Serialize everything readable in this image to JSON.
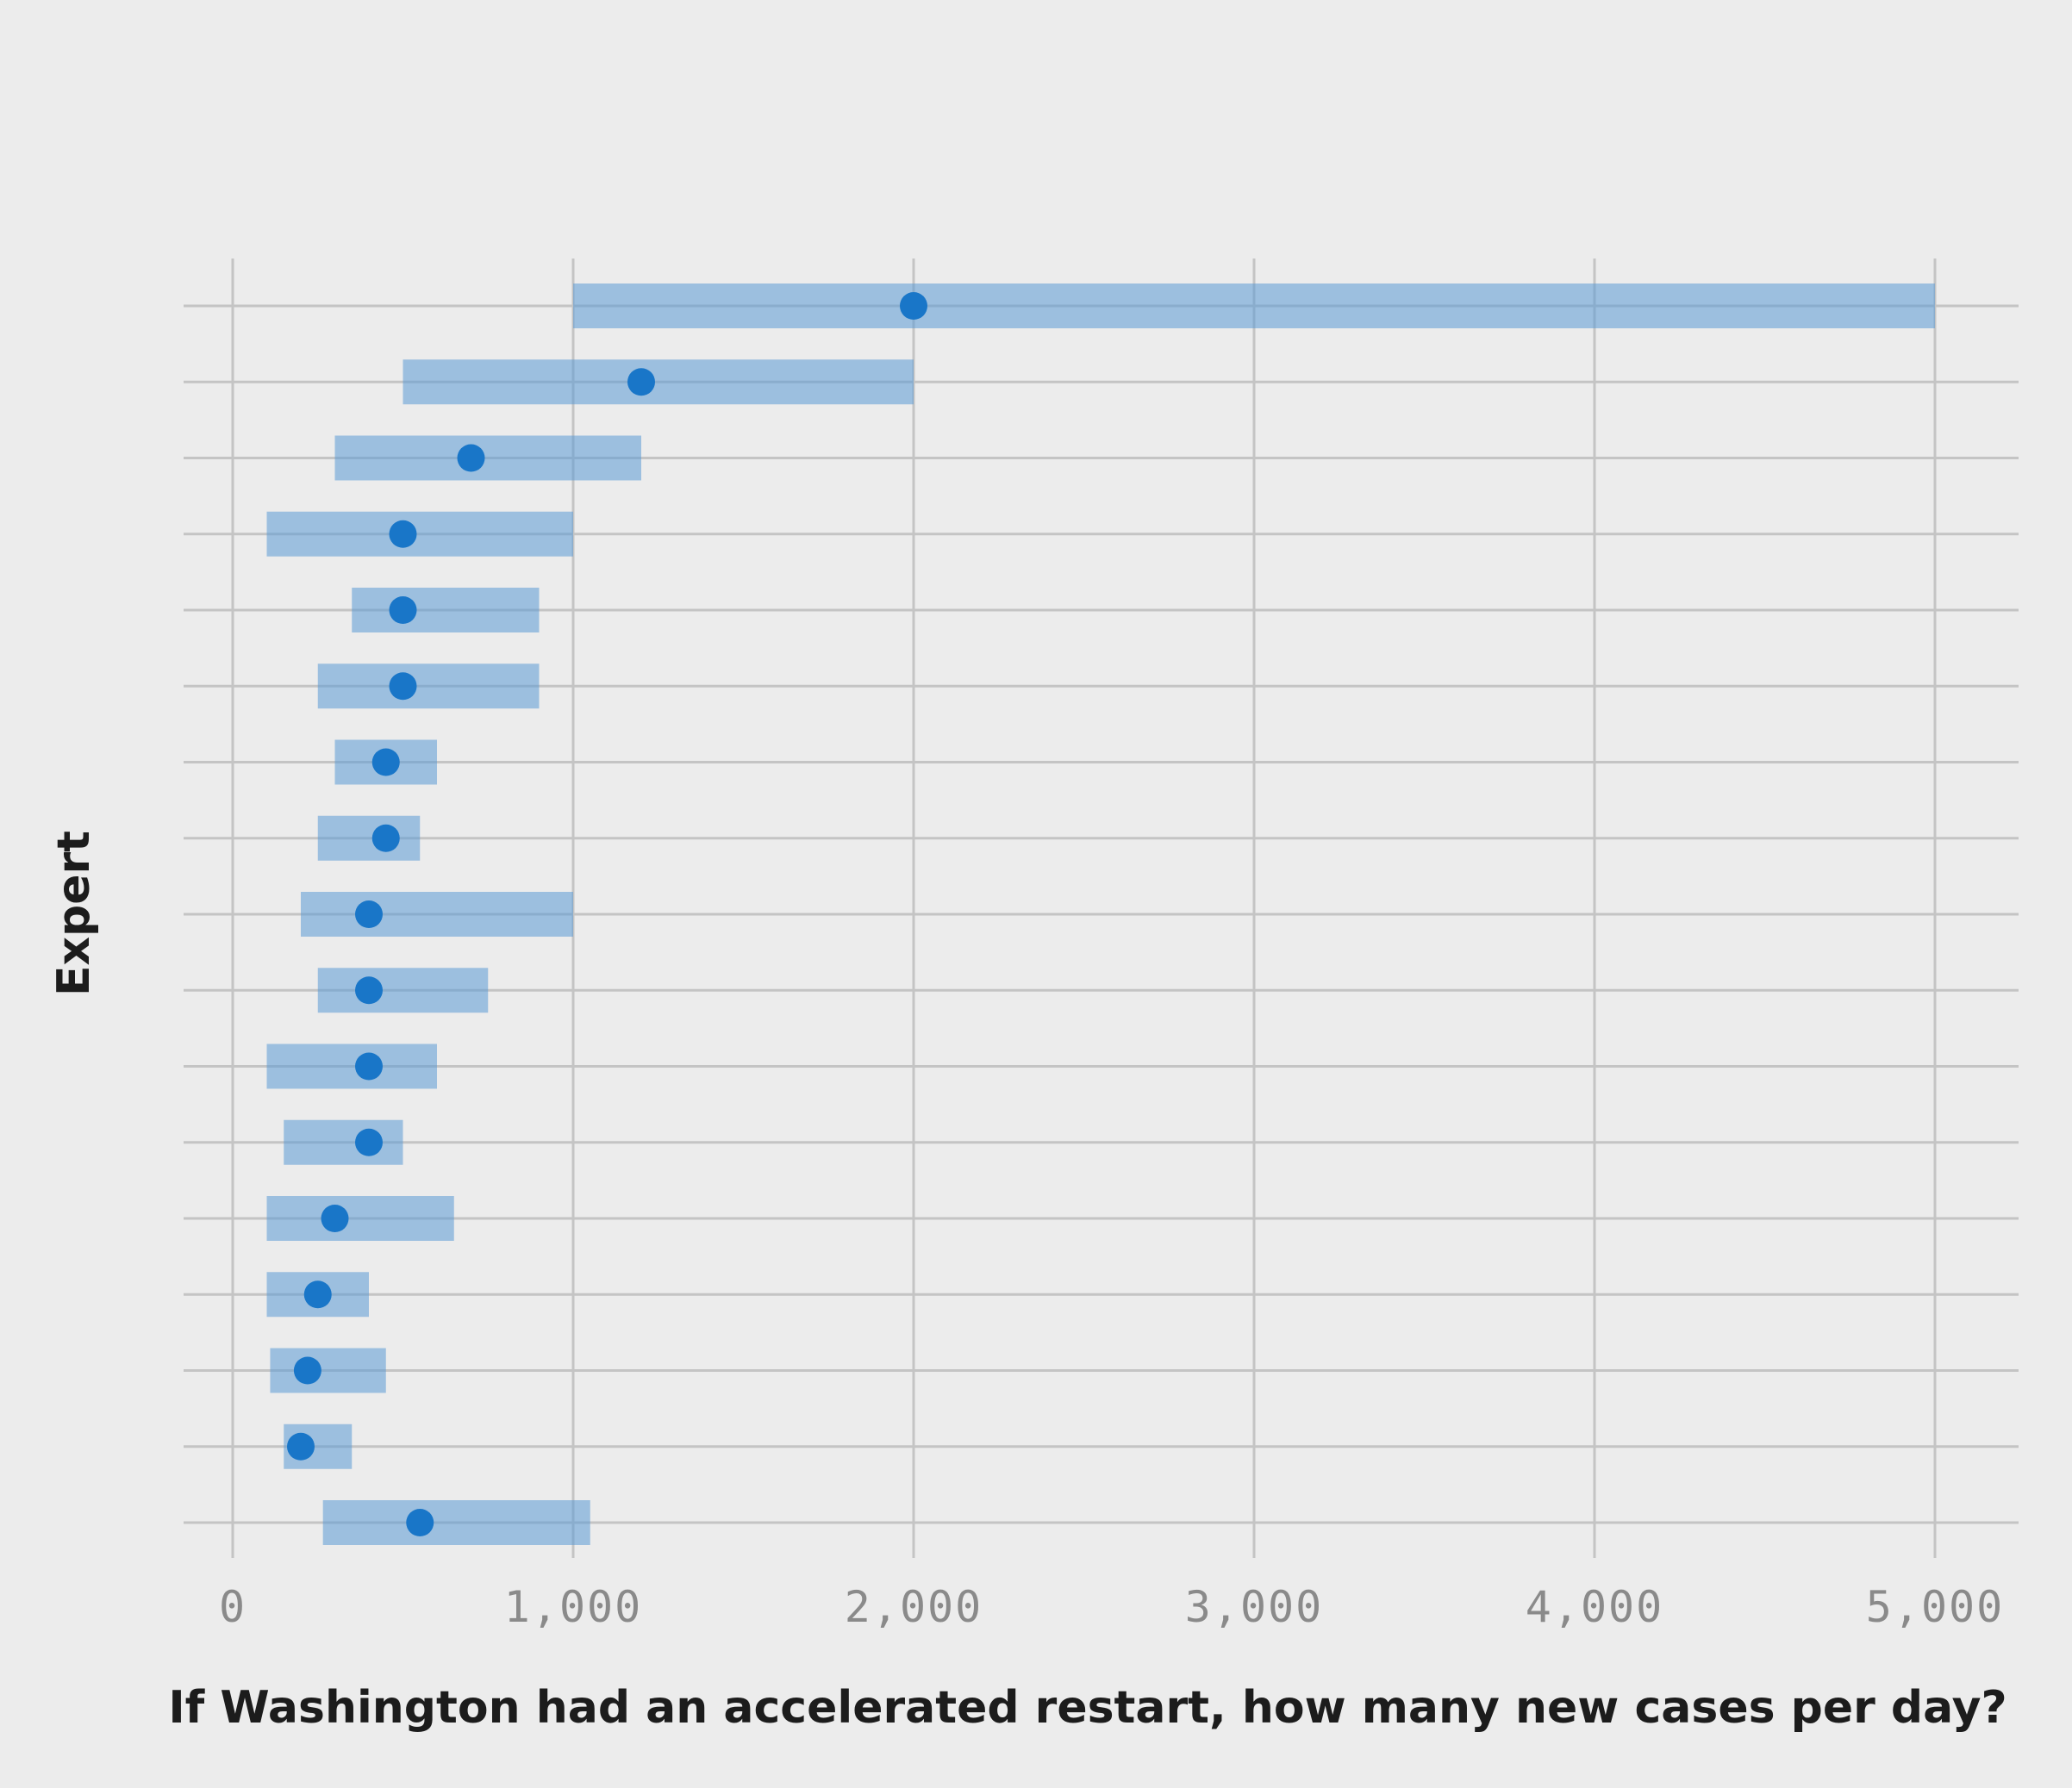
{
  "chart_data": {
    "type": "range-dot",
    "xlabel": "If Washington had an accelerated restart, how many new cases per day?",
    "ylabel": "Expert",
    "xlim": [
      0,
      5000
    ],
    "xticks": [
      0,
      1000,
      2000,
      3000,
      4000,
      5000
    ],
    "xtick_labels": [
      "0",
      "1,000",
      "2,000",
      "3,000",
      "4,000",
      "5,000"
    ],
    "grid": true,
    "colors": {
      "range": "#5b9bd5",
      "point": "#1976c8",
      "grid": "#c4c4c4",
      "background": "#ececec"
    },
    "experts": [
      {
        "low": 1000,
        "high": 5000,
        "estimate": 2000
      },
      {
        "low": 500,
        "high": 2000,
        "estimate": 1200
      },
      {
        "low": 300,
        "high": 1200,
        "estimate": 700
      },
      {
        "low": 100,
        "high": 1000,
        "estimate": 500
      },
      {
        "low": 350,
        "high": 900,
        "estimate": 500
      },
      {
        "low": 250,
        "high": 900,
        "estimate": 500
      },
      {
        "low": 300,
        "high": 600,
        "estimate": 450
      },
      {
        "low": 250,
        "high": 550,
        "estimate": 450
      },
      {
        "low": 200,
        "high": 1000,
        "estimate": 400
      },
      {
        "low": 250,
        "high": 750,
        "estimate": 400
      },
      {
        "low": 100,
        "high": 600,
        "estimate": 400
      },
      {
        "low": 150,
        "high": 500,
        "estimate": 400
      },
      {
        "low": 100,
        "high": 650,
        "estimate": 300
      },
      {
        "low": 100,
        "high": 400,
        "estimate": 250
      },
      {
        "low": 110,
        "high": 450,
        "estimate": 220
      },
      {
        "low": 150,
        "high": 350,
        "estimate": 200
      },
      {
        "low": 265,
        "high": 1050,
        "estimate": 550
      }
    ]
  }
}
